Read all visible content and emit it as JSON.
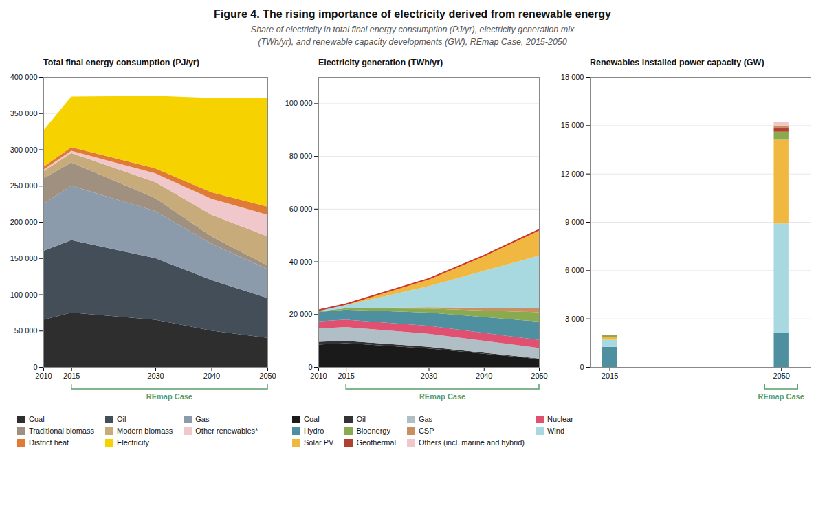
{
  "title": "Figure 4. The rising importance of electricity derived from renewable energy",
  "subtitle": "Share of electricity in total final energy consumption (PJ/yr), electricity generation mix\n(TWh/yr), and renewable capacity developments (GW), REmap Case, 2015-2050",
  "chart_data": [
    {
      "type": "area",
      "title": "Total final energy consumption (PJ/yr)",
      "stacked": true,
      "grid": true,
      "legend": "bottom",
      "x": [
        2010,
        2015,
        2030,
        2040,
        2050
      ],
      "xlim": [
        2010,
        2050
      ],
      "xticks": [
        2010,
        2015,
        2030,
        2040,
        2050
      ],
      "ylim": [
        0,
        400000
      ],
      "yticks": [
        0,
        {
          "value": 50000,
          "label": "50 000"
        },
        {
          "value": 100000,
          "label": "100 000"
        },
        {
          "value": 150000,
          "label": "150 000"
        },
        {
          "value": 200000,
          "label": "200 000"
        },
        {
          "value": 250000,
          "label": "250 000"
        },
        {
          "value": 300000,
          "label": "300 000"
        },
        {
          "value": 350000,
          "label": "350 000"
        },
        {
          "value": 400000,
          "label": "400 000"
        }
      ],
      "series": [
        {
          "name": "Coal",
          "color": "#2e2e2e",
          "values": [
            65000,
            75000,
            65000,
            50000,
            40000
          ]
        },
        {
          "name": "Oil",
          "color": "#444e58",
          "values": [
            95000,
            100000,
            85000,
            70000,
            55000
          ]
        },
        {
          "name": "Gas",
          "color": "#8c9bab",
          "values": [
            65000,
            75000,
            65000,
            50000,
            40000
          ]
        },
        {
          "name": "Traditional biomass",
          "color": "#a09080",
          "values": [
            35000,
            32000,
            18000,
            10000,
            5000
          ]
        },
        {
          "name": "Modern biomass",
          "color": "#c8ab7a",
          "values": [
            10000,
            13000,
            22000,
            30000,
            40000
          ]
        },
        {
          "name": "Other renewables*",
          "color": "#f0c8cc",
          "values": [
            2000,
            3000,
            12000,
            22000,
            30000
          ]
        },
        {
          "name": "District heat",
          "color": "#e07b35",
          "values": [
            4000,
            5000,
            7000,
            9000,
            11000
          ]
        },
        {
          "name": "Electricity",
          "color": "#f5d200",
          "values": [
            50000,
            70000,
            100000,
            130000,
            150000
          ]
        }
      ],
      "annotations": [
        {
          "text": "REmap Case",
          "x1": 2015,
          "x2": 2050,
          "color": "#5a9e6e"
        }
      ]
    },
    {
      "type": "area",
      "title": "Electricity generation (TWh/yr)",
      "stacked": true,
      "grid": true,
      "legend": "bottom",
      "x": [
        2010,
        2015,
        2030,
        2040,
        2050
      ],
      "xlim": [
        2010,
        2050
      ],
      "xticks": [
        2010,
        2015,
        2030,
        2040,
        2050
      ],
      "ylim": [
        0,
        110000
      ],
      "yticks": [
        0,
        {
          "value": 20000,
          "label": "20 000"
        },
        {
          "value": 40000,
          "label": "40 000"
        },
        {
          "value": 60000,
          "label": "60 000"
        },
        {
          "value": 80000,
          "label": "80 000"
        },
        {
          "value": 100000,
          "label": "100 000"
        }
      ],
      "series": [
        {
          "name": "Coal",
          "color": "#1a1a1a",
          "values": [
            8500,
            9000,
            7000,
            5000,
            3000
          ]
        },
        {
          "name": "Oil",
          "color": "#333333",
          "values": [
            1000,
            900,
            600,
            400,
            200
          ]
        },
        {
          "name": "Gas",
          "color": "#b0bec5",
          "values": [
            5000,
            5200,
            5000,
            4500,
            4000
          ]
        },
        {
          "name": "Nuclear",
          "color": "#e05070",
          "values": [
            2800,
            2800,
            3000,
            3000,
            3000
          ]
        },
        {
          "name": "Hydro",
          "color": "#4e8fa0",
          "values": [
            3500,
            3800,
            5000,
            6000,
            7000
          ]
        },
        {
          "name": "Bioenergy",
          "color": "#8aaa50",
          "values": [
            300,
            500,
            1500,
            2500,
            3500
          ]
        },
        {
          "name": "CSP",
          "color": "#c89060",
          "values": [
            10,
            50,
            500,
            1000,
            1500
          ]
        },
        {
          "name": "Wind",
          "color": "#a8d8e0",
          "values": [
            400,
            1200,
            8000,
            14000,
            20000
          ]
        },
        {
          "name": "Solar PV",
          "color": "#f0b840",
          "values": [
            100,
            500,
            3000,
            6000,
            10000
          ]
        },
        {
          "type": "line",
          "color": "#cc3333",
          "values": [
            21610,
            24000,
            33600,
            42400,
            52200
          ]
        }
      ],
      "annotations": [
        {
          "text": "REmap Case",
          "x1": 2015,
          "x2": 2050,
          "color": "#5a9e6e"
        }
      ]
    },
    {
      "type": "bar",
      "title": "Renewables installed power capacity (GW)",
      "stacked": true,
      "grid": true,
      "legend": "bottom",
      "x": [
        2015,
        2050
      ],
      "xlim": [
        2011,
        2056
      ],
      "xticks": [
        2015,
        2050
      ],
      "ylim": [
        0,
        18000
      ],
      "yticks": [
        0,
        {
          "value": 3000,
          "label": "3 000"
        },
        {
          "value": 6000,
          "label": "6 000"
        },
        {
          "value": 9000,
          "label": "9 000"
        },
        {
          "value": 12000,
          "label": "12 000"
        },
        {
          "value": 15000,
          "label": "15 000"
        },
        {
          "value": 18000,
          "label": "18 000"
        }
      ],
      "series": [
        {
          "name": "Hydro",
          "color": "#4e8fa0",
          "values": [
            1250,
            2100
          ]
        },
        {
          "name": "Wind",
          "color": "#a8d8e0",
          "values": [
            430,
            6800
          ]
        },
        {
          "name": "Solar PV",
          "color": "#f0b840",
          "values": [
            180,
            5200
          ]
        },
        {
          "name": "Bioenergy",
          "color": "#8aaa50",
          "values": [
            100,
            500
          ]
        },
        {
          "name": "Geothermal",
          "color": "#b04030",
          "values": [
            13,
            200
          ]
        },
        {
          "name": "CSP",
          "color": "#c89060",
          "values": [
            5,
            150
          ]
        },
        {
          "name": "Others (incl. marine and hybrid)",
          "color": "#f0c8cc",
          "values": [
            2,
            250
          ]
        }
      ],
      "annotations": [
        {
          "text": "REmap Case",
          "x": 2050,
          "color": "#5a9e6e"
        }
      ]
    }
  ]
}
